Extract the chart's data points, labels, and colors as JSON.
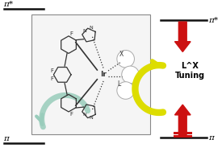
{
  "fig_width": 2.75,
  "fig_height": 1.89,
  "dpi": 100,
  "bg_color": "#ffffff",
  "pi_star_left_text": "π*",
  "pi_left_text": "π",
  "pi_star_right_text": "π*",
  "pi_right_text": "π",
  "lx_text": "L^X\nTuning",
  "line_color": "#111111",
  "red_color": "#cc1111",
  "yellow_color": "#dddd00",
  "cyan_color": "#99ccbb",
  "mol_color": "#333333",
  "gray_color": "#aaaaaa"
}
